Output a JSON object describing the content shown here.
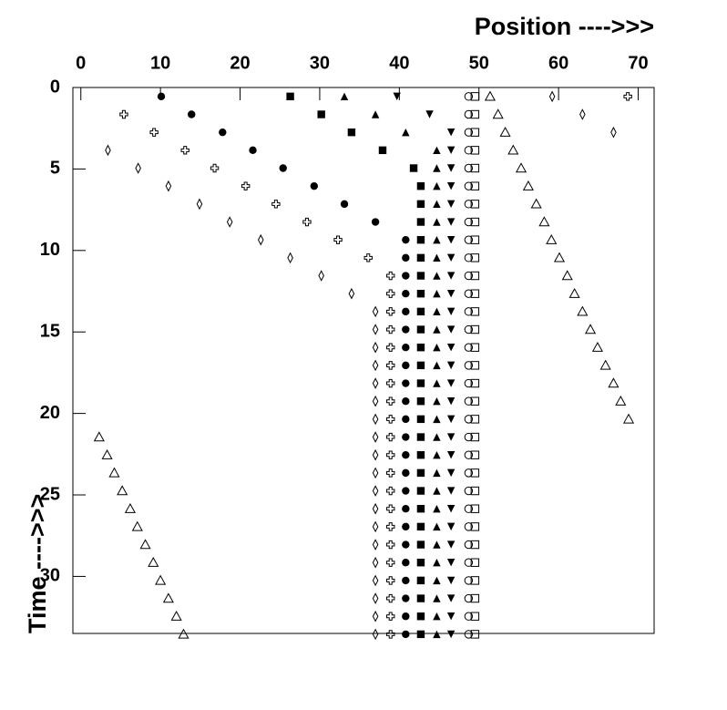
{
  "chart_data": {
    "type": "scatter",
    "xlabel": "Position ---->>>",
    "ylabel": "Time ---->>>",
    "xlim": [
      -1,
      72
    ],
    "ylim": [
      0,
      33.5
    ],
    "xticks": [
      0,
      10,
      20,
      30,
      40,
      50,
      60,
      70
    ],
    "yticks": [
      0,
      5,
      10,
      15,
      20,
      25,
      30
    ],
    "x_axis_position": "top",
    "y_inverted": true,
    "y": [
      0.55,
      1.65,
      2.75,
      3.85,
      4.95,
      6.05,
      7.15,
      8.25,
      9.35,
      10.45,
      11.55,
      12.65,
      13.75,
      14.85,
      15.95,
      17.05,
      18.15,
      19.25,
      20.35,
      21.45,
      22.55,
      23.65,
      24.75,
      25.85,
      26.95,
      28.05,
      29.15,
      30.25,
      31.35,
      32.45,
      33.55
    ],
    "series": [
      {
        "marker": "circle-open",
        "color": "#000000",
        "x": [
          48.7,
          48.7,
          48.7,
          48.7,
          48.7,
          48.7,
          48.7,
          48.7,
          48.7,
          48.7,
          48.7,
          48.7,
          48.7,
          48.7,
          48.7,
          48.7,
          48.7,
          48.7,
          48.7,
          48.7,
          48.7,
          48.7,
          48.7,
          48.7,
          48.7,
          48.7,
          48.7,
          48.7,
          48.7,
          48.7,
          48.7
        ]
      },
      {
        "marker": "square-open",
        "color": "#000000",
        "x": [
          49.5,
          49.5,
          49.5,
          49.5,
          49.5,
          49.5,
          49.5,
          49.5,
          49.5,
          49.5,
          49.5,
          49.5,
          49.5,
          49.5,
          49.5,
          49.5,
          49.5,
          49.5,
          49.5,
          49.5,
          49.5,
          49.5,
          49.5,
          49.5,
          49.5,
          49.5,
          49.5,
          49.5,
          49.5,
          49.5,
          49.5
        ]
      },
      {
        "marker": "triangle-down",
        "color": "#000000",
        "x": [
          39.7,
          43.8,
          46.5,
          46.5,
          46.5,
          46.5,
          46.5,
          46.5,
          46.5,
          46.5,
          46.5,
          46.5,
          46.5,
          46.5,
          46.5,
          46.5,
          46.5,
          46.5,
          46.5,
          46.5,
          46.5,
          46.5,
          46.5,
          46.5,
          46.5,
          46.5,
          46.5,
          46.5,
          46.5,
          46.5,
          46.5
        ]
      },
      {
        "marker": "triangle-up",
        "color": "#000000",
        "x": [
          33.1,
          37.0,
          40.8,
          44.7,
          44.7,
          44.7,
          44.7,
          44.7,
          44.7,
          44.7,
          44.7,
          44.7,
          44.7,
          44.7,
          44.7,
          44.7,
          44.7,
          44.7,
          44.7,
          44.7,
          44.7,
          44.7,
          44.7,
          44.7,
          44.7,
          44.7,
          44.7,
          44.7,
          44.7,
          44.7,
          44.7
        ]
      },
      {
        "marker": "square",
        "color": "#000000",
        "x": [
          26.3,
          30.2,
          34.0,
          37.9,
          41.8,
          42.7,
          42.7,
          42.7,
          42.7,
          42.7,
          42.7,
          42.7,
          42.7,
          42.7,
          42.7,
          42.7,
          42.7,
          42.7,
          42.7,
          42.7,
          42.7,
          42.7,
          42.7,
          42.7,
          42.7,
          42.7,
          42.7,
          42.7,
          42.7,
          42.7,
          42.7
        ]
      },
      {
        "marker": "circle",
        "color": "#000000",
        "x": [
          10.1,
          13.9,
          17.8,
          21.6,
          25.4,
          29.3,
          33.1,
          37.0,
          40.8,
          40.8,
          40.8,
          40.8,
          40.8,
          40.8,
          40.8,
          40.8,
          40.8,
          40.8,
          40.8,
          40.8,
          40.8,
          40.8,
          40.8,
          40.8,
          40.8,
          40.8,
          40.8,
          40.8,
          40.8,
          40.8,
          40.8
        ]
      },
      {
        "marker": "plus-open",
        "color": "#000000",
        "x": [
          68.7,
          5.4,
          9.2,
          13.1,
          16.8,
          20.7,
          24.5,
          28.4,
          32.3,
          36.1,
          38.9,
          38.9,
          38.9,
          38.9,
          38.9,
          38.9,
          38.9,
          38.9,
          38.9,
          38.9,
          38.9,
          38.9,
          38.9,
          38.9,
          38.9,
          38.9,
          38.9,
          38.9,
          38.9,
          38.9,
          38.9
        ]
      },
      {
        "marker": "diamond-open",
        "color": "#000000",
        "x": [
          59.2,
          63.0,
          66.9,
          3.4,
          7.2,
          11.0,
          14.9,
          18.7,
          22.6,
          26.3,
          30.2,
          34.0,
          37.0,
          37.0,
          37.0,
          37.0,
          37.0,
          37.0,
          37.0,
          37.0,
          37.0,
          37.0,
          37.0,
          37.0,
          37.0,
          37.0,
          37.0,
          37.0,
          37.0,
          37.0,
          37.0
        ]
      },
      {
        "marker": "triangle-up-open",
        "color": "#000000",
        "x": [
          51.4,
          52.4,
          53.3,
          54.3,
          55.3,
          56.2,
          57.2,
          58.2,
          59.1,
          60.1,
          61.1,
          62.0,
          63.0,
          64.0,
          64.9,
          65.9,
          66.9,
          67.8,
          68.8,
          2.3,
          3.3,
          4.2,
          5.2,
          6.2,
          7.1,
          8.1,
          9.1,
          10.0,
          11.0,
          12.0,
          12.9
        ]
      }
    ]
  }
}
